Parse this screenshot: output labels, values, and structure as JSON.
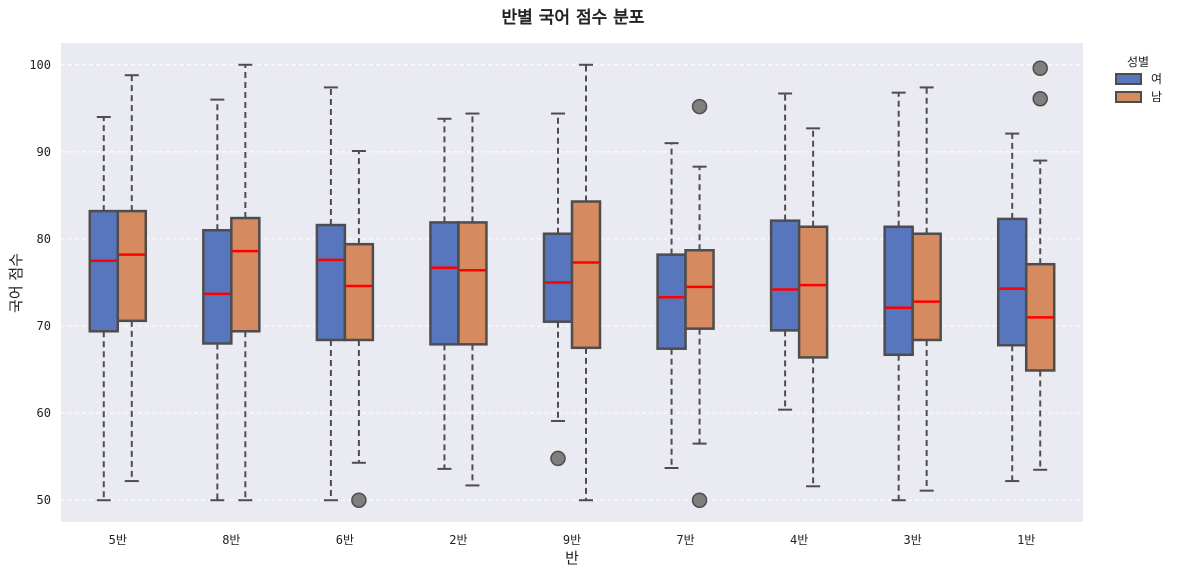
{
  "chart_data": {
    "type": "box",
    "title": "반별 국어 점수 분포",
    "xlabel": "반",
    "ylabel": "국어 점수",
    "ylim": [
      47.5,
      102.5
    ],
    "yticks": [
      50,
      60,
      70,
      80,
      90,
      100
    ],
    "categories": [
      "5반",
      "8반",
      "6반",
      "2반",
      "9반",
      "7반",
      "4반",
      "3반",
      "1반"
    ],
    "legend": {
      "title": "성별",
      "position": "outside-top-right"
    },
    "series": [
      {
        "name": "여",
        "color": "#5876be",
        "boxes": [
          {
            "whisker_low": 50.0,
            "q1": 69.4,
            "median": 77.5,
            "q3": 83.2,
            "whisker_high": 94.0,
            "outliers": []
          },
          {
            "whisker_low": 50.0,
            "q1": 68.0,
            "median": 73.7,
            "q3": 81.0,
            "whisker_high": 96.0,
            "outliers": []
          },
          {
            "whisker_low": 50.0,
            "q1": 68.4,
            "median": 77.6,
            "q3": 81.6,
            "whisker_high": 97.4,
            "outliers": []
          },
          {
            "whisker_low": 53.6,
            "q1": 67.9,
            "median": 76.7,
            "q3": 81.9,
            "whisker_high": 93.8,
            "outliers": []
          },
          {
            "whisker_low": 59.1,
            "q1": 70.5,
            "median": 75.0,
            "q3": 80.6,
            "whisker_high": 94.4,
            "outliers": [
              54.8
            ]
          },
          {
            "whisker_low": 53.7,
            "q1": 67.4,
            "median": 73.3,
            "q3": 78.2,
            "whisker_high": 91.0,
            "outliers": []
          },
          {
            "whisker_low": 60.4,
            "q1": 69.5,
            "median": 74.2,
            "q3": 82.1,
            "whisker_high": 96.7,
            "outliers": []
          },
          {
            "whisker_low": 50.0,
            "q1": 66.7,
            "median": 72.1,
            "q3": 81.4,
            "whisker_high": 96.8,
            "outliers": []
          },
          {
            "whisker_low": 52.2,
            "q1": 67.8,
            "median": 74.3,
            "q3": 82.3,
            "whisker_high": 92.1,
            "outliers": []
          }
        ]
      },
      {
        "name": "남",
        "color": "#d68a5f",
        "boxes": [
          {
            "whisker_low": 52.2,
            "q1": 70.6,
            "median": 78.2,
            "q3": 83.2,
            "whisker_high": 98.8,
            "outliers": []
          },
          {
            "whisker_low": 50.0,
            "q1": 69.4,
            "median": 78.6,
            "q3": 82.4,
            "whisker_high": 100.0,
            "outliers": []
          },
          {
            "whisker_low": 54.3,
            "q1": 68.4,
            "median": 74.6,
            "q3": 79.4,
            "whisker_high": 90.1,
            "outliers": [
              50.0
            ]
          },
          {
            "whisker_low": 51.7,
            "q1": 67.9,
            "median": 76.4,
            "q3": 81.9,
            "whisker_high": 94.4,
            "outliers": []
          },
          {
            "whisker_low": 50.0,
            "q1": 67.5,
            "median": 77.3,
            "q3": 84.3,
            "whisker_high": 100.0,
            "outliers": []
          },
          {
            "whisker_low": 56.5,
            "q1": 69.7,
            "median": 74.5,
            "q3": 78.7,
            "whisker_high": 88.3,
            "outliers": [
              95.2,
              50.0
            ]
          },
          {
            "whisker_low": 51.6,
            "q1": 66.4,
            "median": 74.7,
            "q3": 81.4,
            "whisker_high": 92.7,
            "outliers": []
          },
          {
            "whisker_low": 51.1,
            "q1": 68.4,
            "median": 72.8,
            "q3": 80.6,
            "whisker_high": 97.4,
            "outliers": []
          },
          {
            "whisker_low": 53.5,
            "q1": 64.9,
            "median": 71.0,
            "q3": 77.1,
            "whisker_high": 89.0,
            "outliers": [
              99.6,
              96.1
            ]
          }
        ]
      }
    ],
    "colors": {
      "plot_background": "#eaeaf2",
      "grid": "#ffffff",
      "box_edge": "#4d4d4d",
      "median": "#ff0000",
      "outlier_fill": "#7f7f7f"
    }
  }
}
